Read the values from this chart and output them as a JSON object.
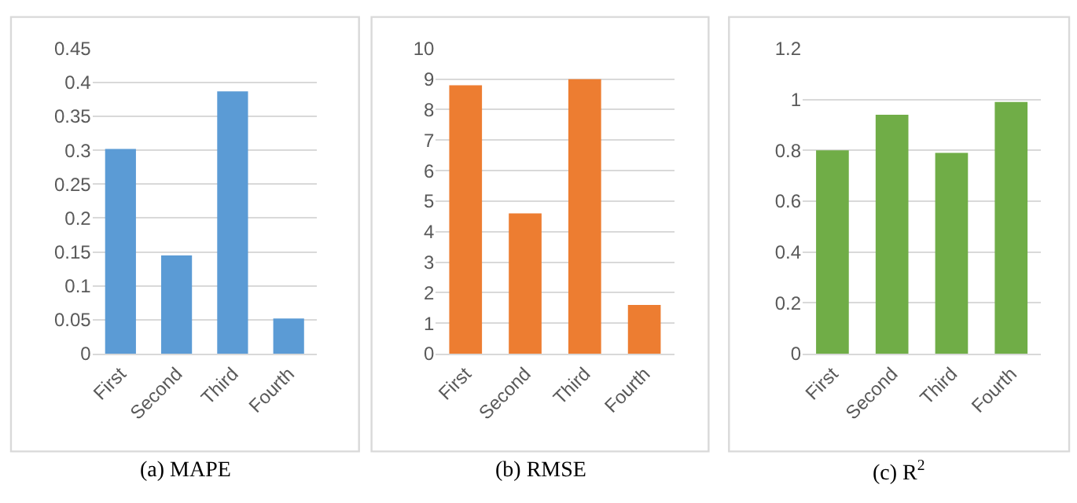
{
  "chart_data": [
    {
      "type": "bar",
      "title": "(a) MAPE",
      "categories": [
        "First",
        "Second",
        "Third",
        "Fourth"
      ],
      "values": [
        0.302,
        0.145,
        0.387,
        0.052
      ],
      "color": "#5b9bd5",
      "ylim": [
        0,
        0.45
      ],
      "yticks": [
        0,
        0.05,
        0.1,
        0.15,
        0.2,
        0.25,
        0.3,
        0.35,
        0.4,
        0.45
      ],
      "grid": "y"
    },
    {
      "type": "bar",
      "title": "(b) RMSE",
      "categories": [
        "First",
        "Second",
        "Third",
        "Fourth"
      ],
      "values": [
        8.8,
        4.6,
        9.0,
        1.6
      ],
      "color": "#ed7d31",
      "ylim": [
        0,
        10
      ],
      "yticks": [
        0,
        1,
        2,
        3,
        4,
        5,
        6,
        7,
        8,
        9,
        10
      ],
      "grid": "y"
    },
    {
      "type": "bar",
      "title": "(c) R$^{2}$",
      "categories": [
        "First",
        "Second",
        "Third",
        "Fourth"
      ],
      "values": [
        0.8,
        0.94,
        0.79,
        0.99
      ],
      "color": "#70ad47",
      "ylim": [
        0,
        1.2
      ],
      "yticks": [
        0,
        0.2,
        0.4,
        0.6,
        0.8,
        1,
        1.2
      ],
      "grid": "y"
    }
  ]
}
